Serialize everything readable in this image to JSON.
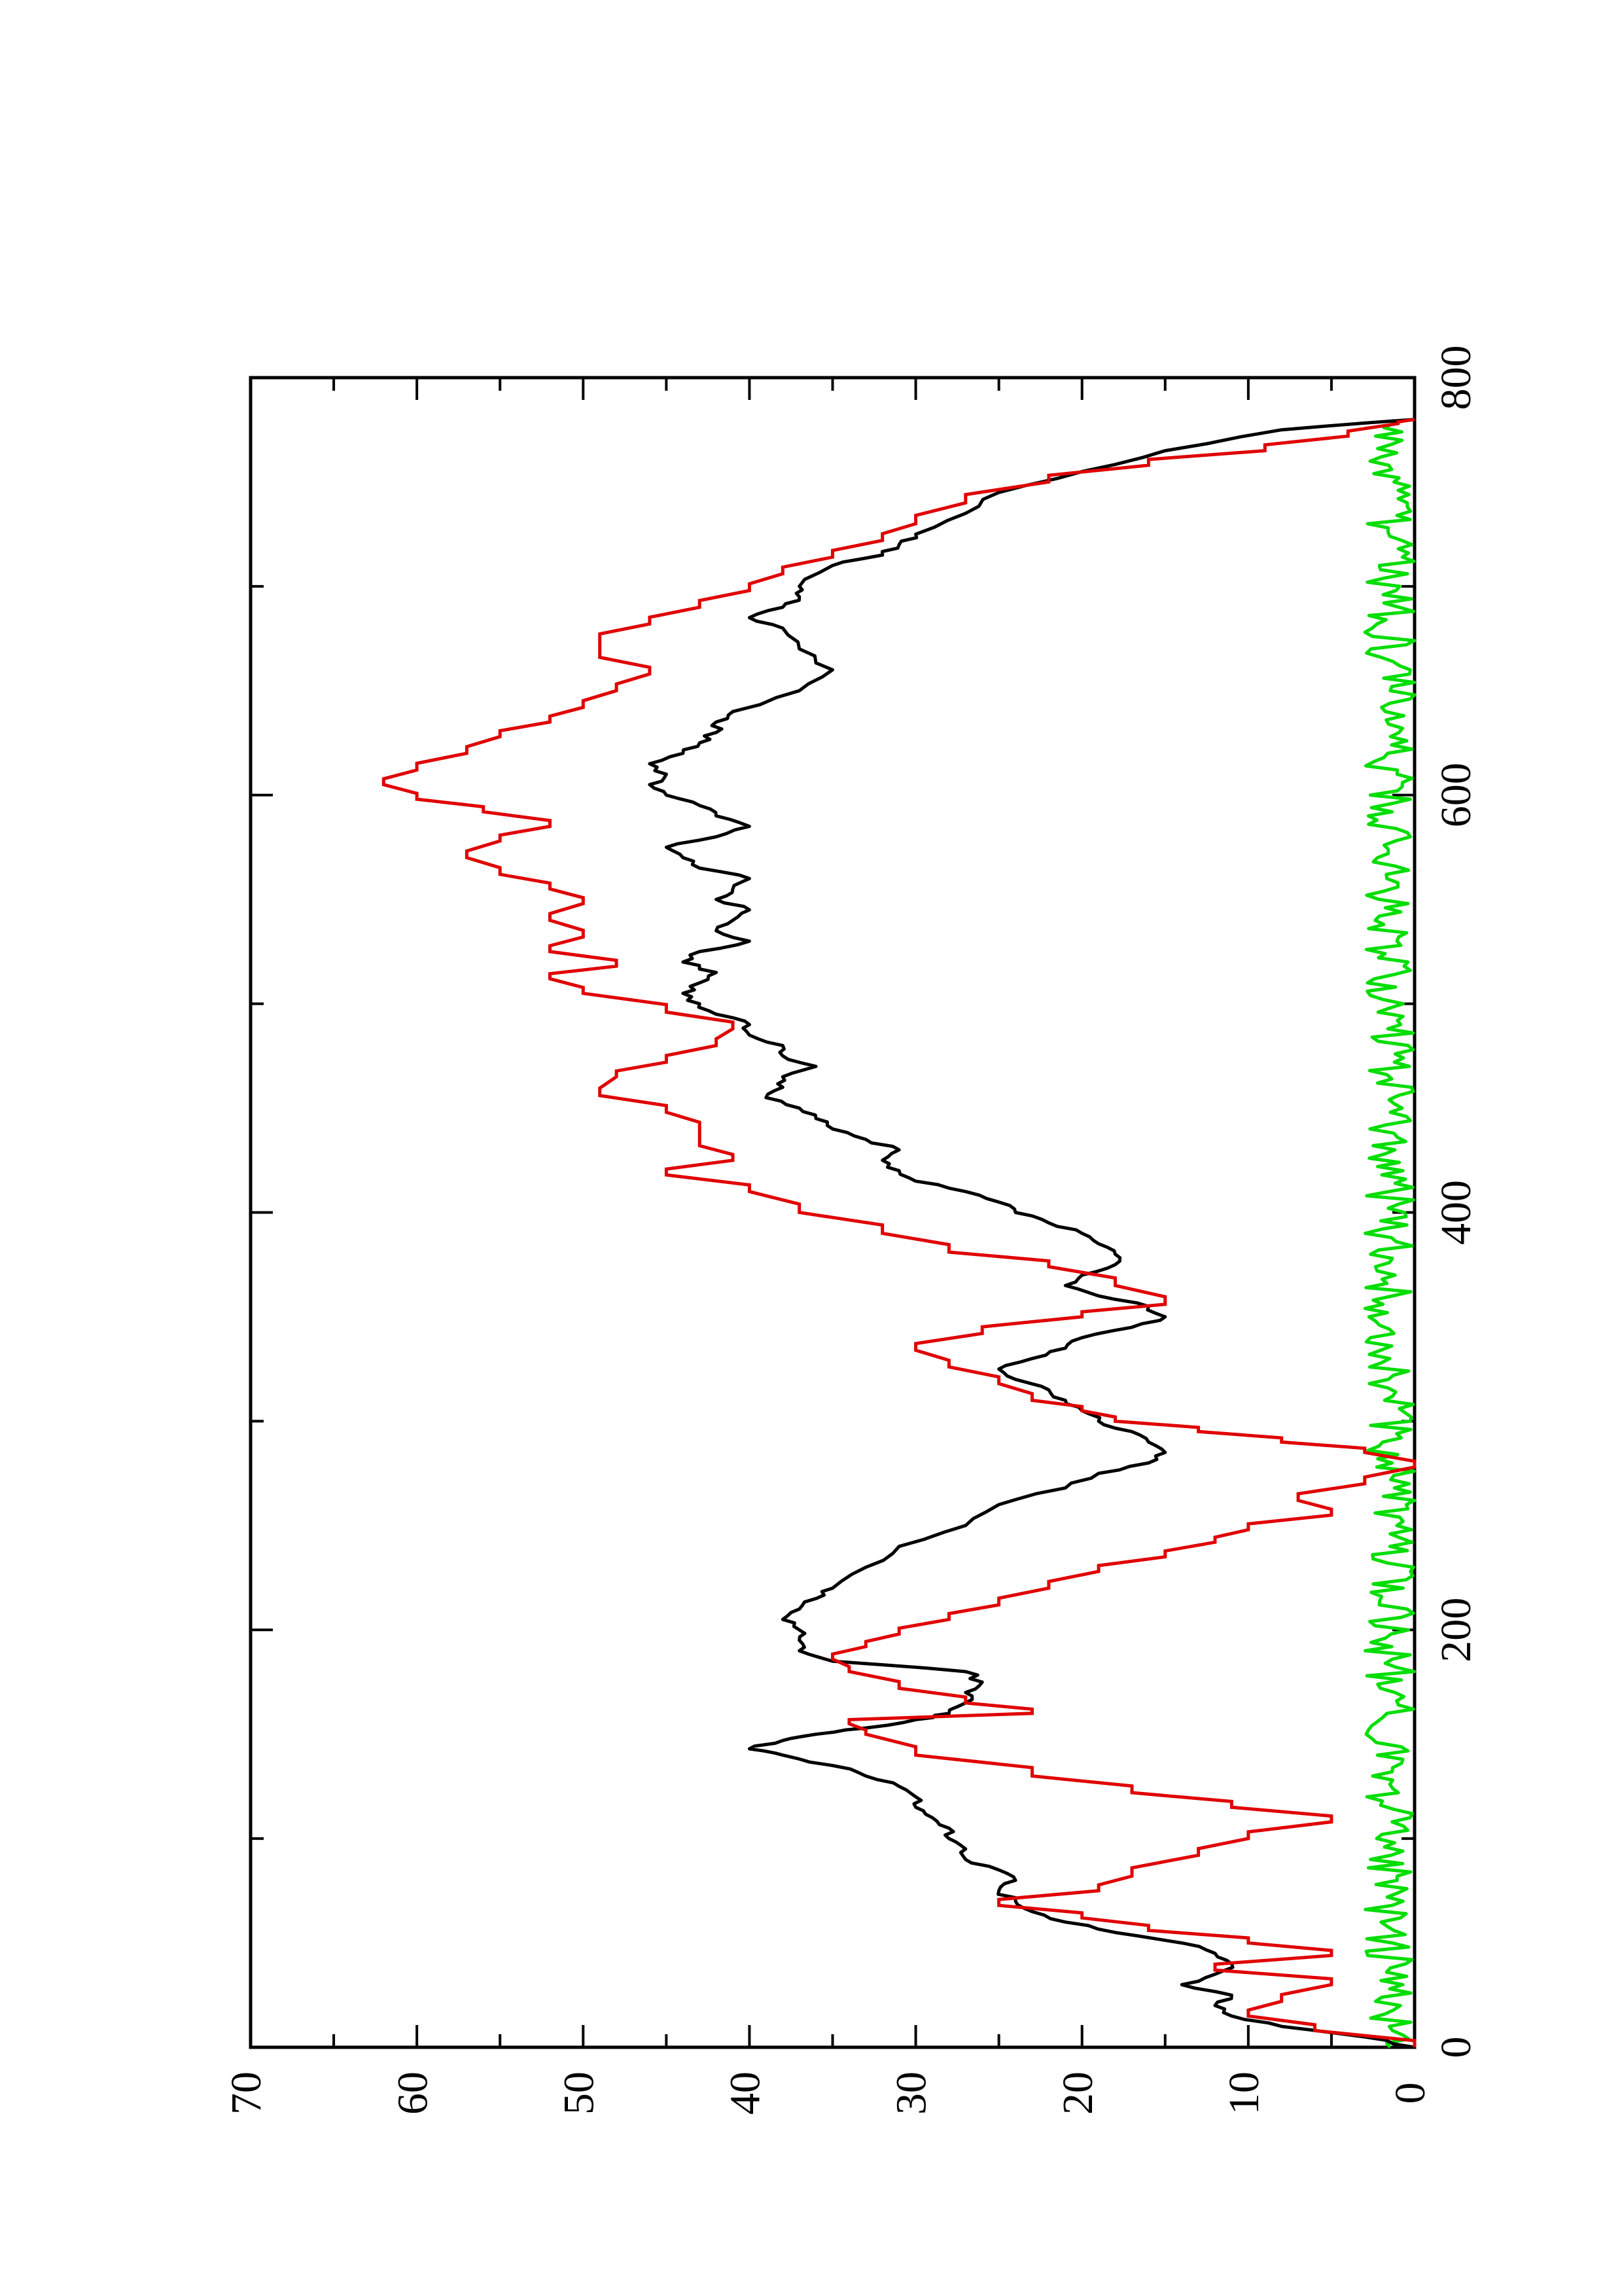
{
  "chart_data": {
    "type": "line",
    "orientation": "rotated 90° counter-clockwise (x axis runs bottom-to-top)",
    "title": "",
    "xlabel": "",
    "ylabel": "",
    "xlim": [
      0,
      800
    ],
    "ylim": [
      0,
      70
    ],
    "x_ticks": [
      0,
      200,
      400,
      600,
      800
    ],
    "x_tick_labels": [
      "0",
      "200",
      "400",
      "600",
      "800"
    ],
    "x_minor_ticks": [
      100,
      300,
      500,
      700
    ],
    "y_ticks": [
      0,
      10,
      20,
      30,
      40,
      50,
      60,
      70
    ],
    "y_tick_labels": [
      "0",
      "10",
      "20",
      "30",
      "40",
      "50",
      "60",
      "70"
    ],
    "y_minor_ticks": [
      5,
      15,
      25,
      35,
      45,
      55,
      65
    ],
    "grid": false,
    "legend": "none",
    "series": [
      {
        "color": "#000000",
        "style": "smooth noisy line",
        "points": [
          [
            0,
            0
          ],
          [
            5,
            3
          ],
          [
            10,
            8
          ],
          [
            15,
            11
          ],
          [
            20,
            12
          ],
          [
            25,
            11
          ],
          [
            30,
            14
          ],
          [
            35,
            12
          ],
          [
            40,
            11
          ],
          [
            45,
            12
          ],
          [
            50,
            14
          ],
          [
            55,
            18
          ],
          [
            60,
            21
          ],
          [
            65,
            23
          ],
          [
            70,
            24
          ],
          [
            75,
            25
          ],
          [
            80,
            24
          ],
          [
            85,
            25
          ],
          [
            90,
            27
          ],
          [
            95,
            27
          ],
          [
            100,
            28
          ],
          [
            105,
            28
          ],
          [
            110,
            29
          ],
          [
            115,
            30
          ],
          [
            120,
            30
          ],
          [
            125,
            31
          ],
          [
            130,
            33
          ],
          [
            135,
            35
          ],
          [
            140,
            38
          ],
          [
            143,
            40
          ],
          [
            147,
            38
          ],
          [
            150,
            36
          ],
          [
            153,
            33
          ],
          [
            157,
            30
          ],
          [
            160,
            28
          ],
          [
            165,
            27
          ],
          [
            170,
            27
          ],
          [
            175,
            26
          ],
          [
            180,
            27
          ],
          [
            185,
            35
          ],
          [
            190,
            37
          ],
          [
            195,
            37
          ],
          [
            200,
            37
          ],
          [
            205,
            38
          ],
          [
            210,
            37
          ],
          [
            215,
            36
          ],
          [
            220,
            35
          ],
          [
            230,
            33
          ],
          [
            240,
            31
          ],
          [
            250,
            27
          ],
          [
            260,
            25
          ],
          [
            268,
            21
          ],
          [
            275,
            19
          ],
          [
            280,
            16
          ],
          [
            285,
            15
          ],
          [
            290,
            16
          ],
          [
            295,
            17
          ],
          [
            300,
            19
          ],
          [
            305,
            20
          ],
          [
            310,
            21
          ],
          [
            315,
            22
          ],
          [
            320,
            24
          ],
          [
            325,
            25
          ],
          [
            330,
            23
          ],
          [
            335,
            21
          ],
          [
            340,
            20
          ],
          [
            345,
            17
          ],
          [
            350,
            15
          ],
          [
            355,
            16
          ],
          [
            360,
            19
          ],
          [
            365,
            21
          ],
          [
            370,
            20
          ],
          [
            375,
            18
          ],
          [
            380,
            18
          ],
          [
            385,
            19
          ],
          [
            390,
            20
          ],
          [
            395,
            22
          ],
          [
            400,
            24
          ],
          [
            405,
            25
          ],
          [
            410,
            27
          ],
          [
            415,
            30
          ],
          [
            420,
            31
          ],
          [
            425,
            32
          ],
          [
            430,
            31
          ],
          [
            435,
            33
          ],
          [
            440,
            35
          ],
          [
            445,
            36
          ],
          [
            450,
            37
          ],
          [
            455,
            39
          ],
          [
            460,
            38
          ],
          [
            465,
            38
          ],
          [
            470,
            36
          ],
          [
            475,
            38
          ],
          [
            480,
            38
          ],
          [
            485,
            40
          ],
          [
            490,
            40
          ],
          [
            495,
            42
          ],
          [
            500,
            43
          ],
          [
            505,
            44
          ],
          [
            510,
            43
          ],
          [
            515,
            42
          ],
          [
            520,
            44
          ],
          [
            525,
            43
          ],
          [
            530,
            40
          ],
          [
            535,
            42
          ],
          [
            540,
            41
          ],
          [
            545,
            40
          ],
          [
            550,
            42
          ],
          [
            555,
            41
          ],
          [
            560,
            40
          ],
          [
            565,
            43
          ],
          [
            570,
            44
          ],
          [
            575,
            45
          ],
          [
            580,
            42
          ],
          [
            585,
            40
          ],
          [
            590,
            42
          ],
          [
            595,
            43
          ],
          [
            600,
            45
          ],
          [
            605,
            46
          ],
          [
            610,
            45
          ],
          [
            615,
            46
          ],
          [
            620,
            44
          ],
          [
            625,
            43
          ],
          [
            630,
            42
          ],
          [
            635,
            42
          ],
          [
            640,
            41
          ],
          [
            650,
            37
          ],
          [
            660,
            35
          ],
          [
            670,
            37
          ],
          [
            680,
            38
          ],
          [
            685,
            40
          ],
          [
            690,
            38
          ],
          [
            695,
            37
          ],
          [
            700,
            37
          ],
          [
            710,
            35
          ],
          [
            715,
            32
          ],
          [
            720,
            31
          ],
          [
            725,
            30
          ],
          [
            735,
            27
          ],
          [
            745,
            25
          ],
          [
            755,
            20
          ],
          [
            765,
            15
          ],
          [
            775,
            8
          ],
          [
            780,
            0
          ]
        ]
      },
      {
        "color": "#e00000",
        "style": "stepped line",
        "points": [
          [
            0,
            0
          ],
          [
            8,
            6
          ],
          [
            15,
            10
          ],
          [
            22,
            8
          ],
          [
            30,
            5
          ],
          [
            37,
            12
          ],
          [
            44,
            5
          ],
          [
            50,
            10
          ],
          [
            56,
            16
          ],
          [
            62,
            20
          ],
          [
            68,
            25
          ],
          [
            75,
            19
          ],
          [
            82,
            17
          ],
          [
            92,
            13
          ],
          [
            100,
            10
          ],
          [
            108,
            5
          ],
          [
            115,
            11
          ],
          [
            122,
            17
          ],
          [
            130,
            23
          ],
          [
            140,
            30
          ],
          [
            150,
            33
          ],
          [
            155,
            34
          ],
          [
            160,
            23
          ],
          [
            165,
            27
          ],
          [
            172,
            31
          ],
          [
            180,
            34
          ],
          [
            186,
            35
          ],
          [
            192,
            33
          ],
          [
            198,
            31
          ],
          [
            205,
            28
          ],
          [
            212,
            25
          ],
          [
            220,
            22
          ],
          [
            228,
            19
          ],
          [
            235,
            15
          ],
          [
            242,
            12
          ],
          [
            248,
            10
          ],
          [
            255,
            5
          ],
          [
            262,
            7
          ],
          [
            270,
            3
          ],
          [
            278,
            0
          ],
          [
            285,
            3
          ],
          [
            290,
            8
          ],
          [
            295,
            13
          ],
          [
            300,
            18
          ],
          [
            305,
            20
          ],
          [
            310,
            23
          ],
          [
            318,
            25
          ],
          [
            326,
            28
          ],
          [
            334,
            30
          ],
          [
            342,
            26
          ],
          [
            350,
            20
          ],
          [
            356,
            15
          ],
          [
            365,
            18
          ],
          [
            374,
            22
          ],
          [
            381,
            28
          ],
          [
            390,
            32
          ],
          [
            400,
            37
          ],
          [
            410,
            40
          ],
          [
            418,
            45
          ],
          [
            425,
            41
          ],
          [
            432,
            43
          ],
          [
            440,
            43
          ],
          [
            448,
            45
          ],
          [
            456,
            49
          ],
          [
            465,
            48
          ],
          [
            472,
            45
          ],
          [
            480,
            42
          ],
          [
            488,
            41
          ],
          [
            496,
            45
          ],
          [
            505,
            50
          ],
          [
            512,
            52
          ],
          [
            518,
            48
          ],
          [
            525,
            52
          ],
          [
            532,
            50
          ],
          [
            540,
            52
          ],
          [
            548,
            50
          ],
          [
            555,
            52
          ],
          [
            562,
            55
          ],
          [
            570,
            57
          ],
          [
            578,
            55
          ],
          [
            585,
            52
          ],
          [
            592,
            56
          ],
          [
            598,
            60
          ],
          [
            605,
            62
          ],
          [
            612,
            60
          ],
          [
            620,
            57
          ],
          [
            628,
            55
          ],
          [
            635,
            52
          ],
          [
            642,
            50
          ],
          [
            650,
            48
          ],
          [
            658,
            46
          ],
          [
            666,
            49
          ],
          [
            674,
            49
          ],
          [
            682,
            46
          ],
          [
            690,
            43
          ],
          [
            698,
            40
          ],
          [
            706,
            38
          ],
          [
            714,
            35
          ],
          [
            722,
            32
          ],
          [
            730,
            30
          ],
          [
            740,
            27
          ],
          [
            750,
            22
          ],
          [
            758,
            16
          ],
          [
            765,
            9
          ],
          [
            772,
            4
          ],
          [
            778,
            1
          ],
          [
            780,
            0
          ]
        ]
      },
      {
        "color": "#00dd00",
        "style": "noise near zero",
        "amplitude_range": [
          0,
          3
        ]
      }
    ]
  }
}
